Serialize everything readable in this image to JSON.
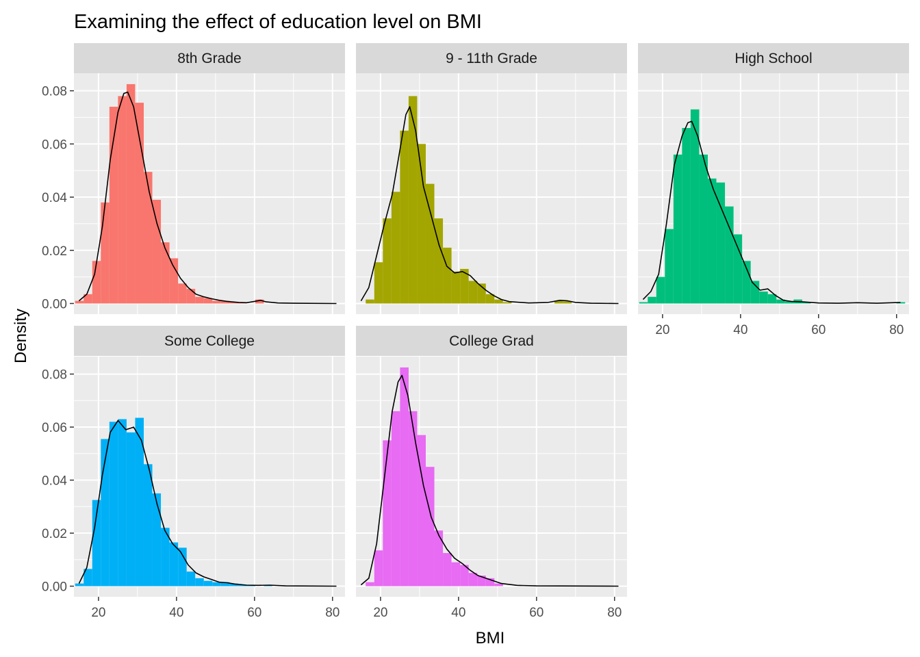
{
  "chart_data": {
    "type": "histogram-density-facets",
    "title": "Examining the effect of education level on BMI",
    "xlabel": "BMI",
    "ylabel": "Density",
    "xlim": [
      13.7,
      83.2
    ],
    "ylim": [
      -0.004,
      0.0866
    ],
    "x_ticks": [
      20,
      40,
      60,
      80
    ],
    "y_ticks": [
      0.0,
      0.02,
      0.04,
      0.06,
      0.08
    ],
    "y_tick_labels": [
      "0.00",
      "0.02",
      "0.04",
      "0.06",
      "0.08"
    ],
    "bin_width": 2.2,
    "grid": true,
    "density_line_color": "#000000",
    "panel_background": "#ebebeb",
    "strip_background": "#d9d9d9",
    "facets": [
      {
        "name": "8th Grade",
        "color": "#F8766D",
        "bins": [
          {
            "x": 15.1,
            "y": 0.001
          },
          {
            "x": 17.3,
            "y": 0.0035
          },
          {
            "x": 19.5,
            "y": 0.016
          },
          {
            "x": 21.7,
            "y": 0.038
          },
          {
            "x": 23.9,
            "y": 0.074
          },
          {
            "x": 26.1,
            "y": 0.078
          },
          {
            "x": 28.3,
            "y": 0.0825
          },
          {
            "x": 30.5,
            "y": 0.0755
          },
          {
            "x": 32.7,
            "y": 0.0495
          },
          {
            "x": 34.9,
            "y": 0.039
          },
          {
            "x": 37.1,
            "y": 0.023
          },
          {
            "x": 39.3,
            "y": 0.017
          },
          {
            "x": 41.5,
            "y": 0.0075
          },
          {
            "x": 43.7,
            "y": 0.0055
          },
          {
            "x": 45.9,
            "y": 0.0025
          },
          {
            "x": 48.1,
            "y": 0.002
          },
          {
            "x": 50.3,
            "y": 0.001
          },
          {
            "x": 52.5,
            "y": 0.001
          },
          {
            "x": 54.7,
            "y": 0.0005
          },
          {
            "x": 56.9,
            "y": 0.0003
          },
          {
            "x": 61.3,
            "y": 0.0015
          }
        ],
        "density": [
          [
            15.0,
            0.001
          ],
          [
            17.0,
            0.0035
          ],
          [
            19.0,
            0.011
          ],
          [
            21.0,
            0.029
          ],
          [
            23.0,
            0.054
          ],
          [
            25.0,
            0.072
          ],
          [
            26.5,
            0.079
          ],
          [
            27.5,
            0.0795
          ],
          [
            29.0,
            0.074
          ],
          [
            31.0,
            0.058
          ],
          [
            33.0,
            0.042
          ],
          [
            35.0,
            0.03
          ],
          [
            37.0,
            0.021
          ],
          [
            39.0,
            0.0145
          ],
          [
            41.0,
            0.0095
          ],
          [
            43.0,
            0.006
          ],
          [
            45.0,
            0.0035
          ],
          [
            47.0,
            0.0025
          ],
          [
            49.0,
            0.0018
          ],
          [
            51.0,
            0.0012
          ],
          [
            53.0,
            0.0008
          ],
          [
            56.0,
            0.0004
          ],
          [
            58.0,
            0.0003
          ],
          [
            60.0,
            0.0008
          ],
          [
            61.5,
            0.0012
          ],
          [
            63.0,
            0.0006
          ],
          [
            66.0,
            0.0002
          ],
          [
            70.0,
            0.0001
          ],
          [
            81.0,
            0.0
          ]
        ]
      },
      {
        "name": "9 - 11th Grade",
        "color": "#A3A500",
        "bins": [
          {
            "x": 17.3,
            "y": 0.0015
          },
          {
            "x": 19.5,
            "y": 0.0155
          },
          {
            "x": 21.7,
            "y": 0.032
          },
          {
            "x": 23.9,
            "y": 0.042
          },
          {
            "x": 26.1,
            "y": 0.065
          },
          {
            "x": 28.3,
            "y": 0.078
          },
          {
            "x": 30.5,
            "y": 0.06
          },
          {
            "x": 32.7,
            "y": 0.045
          },
          {
            "x": 34.9,
            "y": 0.032
          },
          {
            "x": 37.1,
            "y": 0.021
          },
          {
            "x": 39.3,
            "y": 0.012
          },
          {
            "x": 41.5,
            "y": 0.013
          },
          {
            "x": 43.7,
            "y": 0.0085
          },
          {
            "x": 45.9,
            "y": 0.0075
          },
          {
            "x": 48.1,
            "y": 0.0035
          },
          {
            "x": 50.3,
            "y": 0.0015
          },
          {
            "x": 52.5,
            "y": 0.0005
          },
          {
            "x": 65.7,
            "y": 0.001
          },
          {
            "x": 67.9,
            "y": 0.0008
          }
        ],
        "density": [
          [
            15.0,
            0.001
          ],
          [
            17.0,
            0.006
          ],
          [
            19.0,
            0.018
          ],
          [
            21.0,
            0.03
          ],
          [
            23.0,
            0.041
          ],
          [
            25.0,
            0.058
          ],
          [
            26.5,
            0.071
          ],
          [
            27.5,
            0.074
          ],
          [
            29.0,
            0.065
          ],
          [
            31.0,
            0.044
          ],
          [
            33.0,
            0.033
          ],
          [
            35.0,
            0.022
          ],
          [
            37.0,
            0.014
          ],
          [
            39.0,
            0.0115
          ],
          [
            41.0,
            0.012
          ],
          [
            43.0,
            0.0105
          ],
          [
            45.0,
            0.0075
          ],
          [
            47.0,
            0.005
          ],
          [
            49.0,
            0.003
          ],
          [
            51.0,
            0.0015
          ],
          [
            53.0,
            0.0007
          ],
          [
            58.0,
            0.0002
          ],
          [
            63.0,
            0.0004
          ],
          [
            66.0,
            0.0012
          ],
          [
            68.0,
            0.001
          ],
          [
            70.0,
            0.0004
          ],
          [
            74.0,
            0.0001
          ],
          [
            81.0,
            0.0
          ]
        ]
      },
      {
        "name": "High School",
        "color": "#00BF7D",
        "bins": [
          {
            "x": 15.1,
            "y": 0.0005
          },
          {
            "x": 17.3,
            "y": 0.0025
          },
          {
            "x": 19.5,
            "y": 0.01
          },
          {
            "x": 21.7,
            "y": 0.028
          },
          {
            "x": 23.9,
            "y": 0.056
          },
          {
            "x": 26.1,
            "y": 0.066
          },
          {
            "x": 28.3,
            "y": 0.073
          },
          {
            "x": 30.5,
            "y": 0.056
          },
          {
            "x": 32.7,
            "y": 0.047
          },
          {
            "x": 34.9,
            "y": 0.0455
          },
          {
            "x": 37.1,
            "y": 0.0365
          },
          {
            "x": 39.3,
            "y": 0.026
          },
          {
            "x": 41.5,
            "y": 0.016
          },
          {
            "x": 43.7,
            "y": 0.0085
          },
          {
            "x": 45.9,
            "y": 0.0045
          },
          {
            "x": 48.1,
            "y": 0.0035
          },
          {
            "x": 50.3,
            "y": 0.0015
          },
          {
            "x": 52.5,
            "y": 0.0008
          },
          {
            "x": 54.7,
            "y": 0.0015
          },
          {
            "x": 56.9,
            "y": 0.0005
          },
          {
            "x": 61.3,
            "y": 0.0003
          },
          {
            "x": 81.1,
            "y": 0.0005
          }
        ],
        "density": [
          [
            15.0,
            0.0015
          ],
          [
            17.0,
            0.0045
          ],
          [
            19.0,
            0.011
          ],
          [
            21.0,
            0.03
          ],
          [
            23.0,
            0.052
          ],
          [
            25.0,
            0.063
          ],
          [
            26.5,
            0.068
          ],
          [
            27.5,
            0.0685
          ],
          [
            29.0,
            0.063
          ],
          [
            31.0,
            0.052
          ],
          [
            33.0,
            0.043
          ],
          [
            35.0,
            0.036
          ],
          [
            37.0,
            0.029
          ],
          [
            39.0,
            0.022
          ],
          [
            41.0,
            0.015
          ],
          [
            43.0,
            0.008
          ],
          [
            45.0,
            0.005
          ],
          [
            47.0,
            0.0055
          ],
          [
            49.0,
            0.003
          ],
          [
            51.0,
            0.0012
          ],
          [
            53.0,
            0.0008
          ],
          [
            56.0,
            0.0006
          ],
          [
            60.0,
            0.0002
          ],
          [
            65.0,
            0.0001
          ],
          [
            70.0,
            0.0003
          ],
          [
            75.0,
            0.0001
          ],
          [
            81.0,
            0.0004
          ]
        ]
      },
      {
        "name": "Some College",
        "color": "#00B0F6",
        "bins": [
          {
            "x": 15.1,
            "y": 0.001
          },
          {
            "x": 17.3,
            "y": 0.0065
          },
          {
            "x": 19.5,
            "y": 0.0325
          },
          {
            "x": 21.7,
            "y": 0.0555
          },
          {
            "x": 23.9,
            "y": 0.062
          },
          {
            "x": 26.1,
            "y": 0.063
          },
          {
            "x": 28.3,
            "y": 0.058
          },
          {
            "x": 30.5,
            "y": 0.0635
          },
          {
            "x": 32.7,
            "y": 0.046
          },
          {
            "x": 34.9,
            "y": 0.035
          },
          {
            "x": 37.1,
            "y": 0.022
          },
          {
            "x": 39.3,
            "y": 0.0165
          },
          {
            "x": 41.5,
            "y": 0.0145
          },
          {
            "x": 43.7,
            "y": 0.0055
          },
          {
            "x": 45.9,
            "y": 0.003
          },
          {
            "x": 48.1,
            "y": 0.002
          },
          {
            "x": 50.3,
            "y": 0.0015
          },
          {
            "x": 52.5,
            "y": 0.0015
          },
          {
            "x": 54.7,
            "y": 0.001
          },
          {
            "x": 56.9,
            "y": 0.0005
          },
          {
            "x": 59.1,
            "y": 0.0003
          },
          {
            "x": 63.5,
            "y": 0.0005
          }
        ],
        "density": [
          [
            15.0,
            0.001
          ],
          [
            17.0,
            0.007
          ],
          [
            19.0,
            0.022
          ],
          [
            21.0,
            0.042
          ],
          [
            23.0,
            0.058
          ],
          [
            25.0,
            0.0625
          ],
          [
            27.0,
            0.059
          ],
          [
            29.0,
            0.06
          ],
          [
            31.0,
            0.055
          ],
          [
            33.0,
            0.044
          ],
          [
            35.0,
            0.031
          ],
          [
            37.0,
            0.021
          ],
          [
            39.0,
            0.016
          ],
          [
            41.0,
            0.013
          ],
          [
            43.0,
            0.008
          ],
          [
            45.0,
            0.005
          ],
          [
            47.0,
            0.0035
          ],
          [
            49.0,
            0.0025
          ],
          [
            51.0,
            0.0015
          ],
          [
            53.0,
            0.0013
          ],
          [
            55.0,
            0.0008
          ],
          [
            58.0,
            0.0004
          ],
          [
            61.0,
            0.0003
          ],
          [
            64.0,
            0.0004
          ],
          [
            68.0,
            0.0001
          ],
          [
            81.0,
            0.0
          ]
        ]
      },
      {
        "name": "College Grad",
        "color": "#E76BF3",
        "bins": [
          {
            "x": 17.3,
            "y": 0.0015
          },
          {
            "x": 19.5,
            "y": 0.0135
          },
          {
            "x": 21.7,
            "y": 0.055
          },
          {
            "x": 23.9,
            "y": 0.066
          },
          {
            "x": 26.1,
            "y": 0.0825
          },
          {
            "x": 28.3,
            "y": 0.066
          },
          {
            "x": 30.5,
            "y": 0.057
          },
          {
            "x": 32.7,
            "y": 0.045
          },
          {
            "x": 34.9,
            "y": 0.021
          },
          {
            "x": 37.1,
            "y": 0.0125
          },
          {
            "x": 39.3,
            "y": 0.009
          },
          {
            "x": 41.5,
            "y": 0.008
          },
          {
            "x": 43.7,
            "y": 0.005
          },
          {
            "x": 45.9,
            "y": 0.004
          },
          {
            "x": 48.1,
            "y": 0.003
          },
          {
            "x": 50.3,
            "y": 0.001
          }
        ],
        "density": [
          [
            15.0,
            0.0005
          ],
          [
            17.0,
            0.003
          ],
          [
            19.0,
            0.016
          ],
          [
            21.0,
            0.041
          ],
          [
            23.0,
            0.066
          ],
          [
            24.5,
            0.077
          ],
          [
            25.5,
            0.0795
          ],
          [
            27.0,
            0.072
          ],
          [
            29.0,
            0.054
          ],
          [
            31.0,
            0.038
          ],
          [
            33.0,
            0.026
          ],
          [
            35.0,
            0.019
          ],
          [
            37.0,
            0.014
          ],
          [
            39.0,
            0.0105
          ],
          [
            41.0,
            0.0085
          ],
          [
            43.0,
            0.006
          ],
          [
            45.0,
            0.004
          ],
          [
            47.0,
            0.003
          ],
          [
            49.0,
            0.002
          ],
          [
            51.0,
            0.001
          ],
          [
            55.0,
            0.0003
          ],
          [
            60.0,
            0.0001
          ],
          [
            81.0,
            0.0
          ]
        ]
      }
    ]
  }
}
